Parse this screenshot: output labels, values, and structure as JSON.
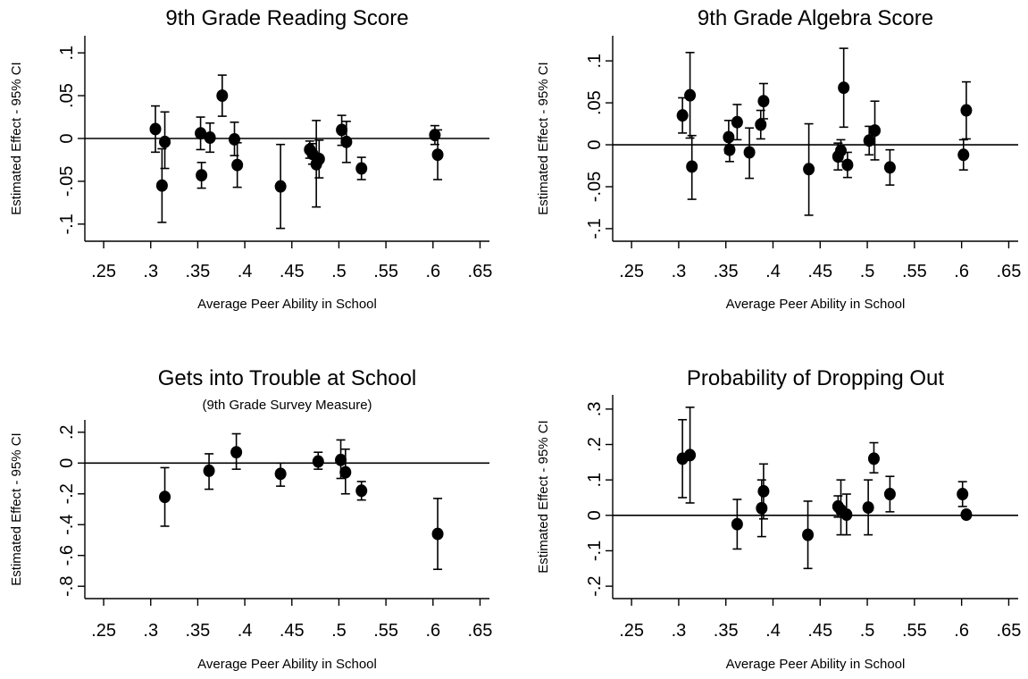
{
  "figure": {
    "xlabel": "Average Peer Ability in School",
    "ylabel": "Estimated Effect - 95% CI"
  },
  "chart_data": [
    {
      "type": "scatter",
      "title": "9th Grade Reading Score",
      "subtitle": "",
      "xlabel": "Average Peer Ability in School",
      "ylabel": "Estimated Effect - 95% CI",
      "xlim": [
        0.23,
        0.66
      ],
      "ylim": [
        -0.12,
        0.12
      ],
      "xticks": [
        ".25",
        ".3",
        ".35",
        ".4",
        ".45",
        ".5",
        ".55",
        ".6",
        ".65"
      ],
      "xtick_values": [
        0.25,
        0.3,
        0.35,
        0.4,
        0.45,
        0.5,
        0.55,
        0.6,
        0.65
      ],
      "yticks": [
        "-.1",
        "-.05",
        "0",
        ".05",
        ".1"
      ],
      "ytick_values": [
        -0.1,
        -0.05,
        0,
        0.05,
        0.1
      ],
      "reference_line": 0,
      "points": [
        {
          "x": 0.305,
          "y": 0.011,
          "lo": -0.016,
          "hi": 0.038
        },
        {
          "x": 0.312,
          "y": -0.055,
          "lo": -0.098,
          "hi": -0.012
        },
        {
          "x": 0.315,
          "y": -0.004,
          "lo": -0.035,
          "hi": 0.031
        },
        {
          "x": 0.353,
          "y": 0.006,
          "lo": -0.013,
          "hi": 0.025
        },
        {
          "x": 0.354,
          "y": -0.043,
          "lo": -0.058,
          "hi": -0.028
        },
        {
          "x": 0.363,
          "y": 0.001,
          "lo": -0.016,
          "hi": 0.018
        },
        {
          "x": 0.376,
          "y": 0.05,
          "lo": 0.026,
          "hi": 0.074
        },
        {
          "x": 0.389,
          "y": -0.001,
          "lo": -0.02,
          "hi": 0.019
        },
        {
          "x": 0.392,
          "y": -0.031,
          "lo": -0.057,
          "hi": -0.005
        },
        {
          "x": 0.438,
          "y": -0.056,
          "lo": -0.105,
          "hi": -0.007
        },
        {
          "x": 0.469,
          "y": -0.013,
          "lo": -0.023,
          "hi": -0.003
        },
        {
          "x": 0.472,
          "y": -0.018,
          "lo": -0.03,
          "hi": -0.006
        },
        {
          "x": 0.476,
          "y": -0.03,
          "lo": -0.08,
          "hi": 0.021
        },
        {
          "x": 0.479,
          "y": -0.024,
          "lo": -0.046,
          "hi": -0.002
        },
        {
          "x": 0.503,
          "y": 0.01,
          "lo": -0.008,
          "hi": 0.027
        },
        {
          "x": 0.508,
          "y": -0.004,
          "lo": -0.028,
          "hi": 0.02
        },
        {
          "x": 0.524,
          "y": -0.035,
          "lo": -0.048,
          "hi": -0.022
        },
        {
          "x": 0.602,
          "y": 0.004,
          "lo": -0.007,
          "hi": 0.015
        },
        {
          "x": 0.605,
          "y": -0.019,
          "lo": -0.048,
          "hi": 0.01
        }
      ]
    },
    {
      "type": "scatter",
      "title": "9th Grade Algebra Score",
      "subtitle": "",
      "xlabel": "Average Peer Ability in School",
      "ylabel": "Estimated Effect - 95% CI",
      "xlim": [
        0.23,
        0.66
      ],
      "ylim": [
        -0.115,
        0.13
      ],
      "xticks": [
        ".25",
        ".3",
        ".35",
        ".4",
        ".45",
        ".5",
        ".55",
        ".6",
        ".65"
      ],
      "xtick_values": [
        0.25,
        0.3,
        0.35,
        0.4,
        0.45,
        0.5,
        0.55,
        0.6,
        0.65
      ],
      "yticks": [
        "-.1",
        "-.05",
        "0",
        ".05",
        ".1"
      ],
      "ytick_values": [
        -0.1,
        -0.05,
        0,
        0.05,
        0.1
      ],
      "reference_line": 0,
      "points": [
        {
          "x": 0.304,
          "y": 0.035,
          "lo": 0.014,
          "hi": 0.056
        },
        {
          "x": 0.312,
          "y": 0.059,
          "lo": 0.008,
          "hi": 0.11
        },
        {
          "x": 0.314,
          "y": -0.026,
          "lo": -0.065,
          "hi": 0.011
        },
        {
          "x": 0.353,
          "y": 0.009,
          "lo": -0.01,
          "hi": 0.029
        },
        {
          "x": 0.354,
          "y": -0.006,
          "lo": -0.02,
          "hi": 0.008
        },
        {
          "x": 0.362,
          "y": 0.027,
          "lo": 0.006,
          "hi": 0.048
        },
        {
          "x": 0.375,
          "y": -0.009,
          "lo": -0.04,
          "hi": 0.02
        },
        {
          "x": 0.387,
          "y": 0.024,
          "lo": 0.007,
          "hi": 0.041
        },
        {
          "x": 0.39,
          "y": 0.052,
          "lo": 0.031,
          "hi": 0.073
        },
        {
          "x": 0.438,
          "y": -0.029,
          "lo": -0.084,
          "hi": 0.025
        },
        {
          "x": 0.469,
          "y": -0.014,
          "lo": -0.03,
          "hi": 0.002
        },
        {
          "x": 0.472,
          "y": -0.007,
          "lo": -0.02,
          "hi": 0.006
        },
        {
          "x": 0.475,
          "y": 0.068,
          "lo": 0.021,
          "hi": 0.115
        },
        {
          "x": 0.479,
          "y": -0.024,
          "lo": -0.039,
          "hi": -0.009
        },
        {
          "x": 0.502,
          "y": 0.005,
          "lo": -0.012,
          "hi": 0.022
        },
        {
          "x": 0.508,
          "y": 0.017,
          "lo": -0.018,
          "hi": 0.052
        },
        {
          "x": 0.524,
          "y": -0.027,
          "lo": -0.048,
          "hi": -0.006
        },
        {
          "x": 0.602,
          "y": -0.012,
          "lo": -0.03,
          "hi": 0.006
        },
        {
          "x": 0.605,
          "y": 0.041,
          "lo": 0.007,
          "hi": 0.075
        }
      ]
    },
    {
      "type": "scatter",
      "title": "Gets into Trouble at School",
      "subtitle": "(9th Grade Survey Measure)",
      "xlabel": "Average Peer Ability in School",
      "ylabel": "Estimated Effect - 95% CI",
      "xlim": [
        0.23,
        0.66
      ],
      "ylim": [
        -0.88,
        0.28
      ],
      "xticks": [
        ".25",
        ".3",
        ".35",
        ".4",
        ".45",
        ".5",
        ".55",
        ".6",
        ".65"
      ],
      "xtick_values": [
        0.25,
        0.3,
        0.35,
        0.4,
        0.45,
        0.5,
        0.55,
        0.6,
        0.65
      ],
      "yticks": [
        "-.8",
        "-.6",
        "-.4",
        "-.2",
        "0",
        ".2"
      ],
      "ytick_values": [
        -0.8,
        -0.6,
        -0.4,
        -0.2,
        0,
        0.2
      ],
      "reference_line": 0,
      "points": [
        {
          "x": 0.315,
          "y": -0.22,
          "lo": -0.41,
          "hi": -0.03
        },
        {
          "x": 0.362,
          "y": -0.05,
          "lo": -0.17,
          "hi": 0.06
        },
        {
          "x": 0.391,
          "y": 0.07,
          "lo": -0.04,
          "hi": 0.19
        },
        {
          "x": 0.438,
          "y": -0.07,
          "lo": -0.15,
          "hi": 0.0
        },
        {
          "x": 0.478,
          "y": 0.01,
          "lo": -0.04,
          "hi": 0.07
        },
        {
          "x": 0.502,
          "y": 0.02,
          "lo": -0.1,
          "hi": 0.15
        },
        {
          "x": 0.507,
          "y": -0.06,
          "lo": -0.2,
          "hi": 0.09
        },
        {
          "x": 0.524,
          "y": -0.18,
          "lo": -0.24,
          "hi": -0.12
        },
        {
          "x": 0.605,
          "y": -0.46,
          "lo": -0.69,
          "hi": -0.23
        }
      ]
    },
    {
      "type": "scatter",
      "title": "Probability of Dropping Out",
      "subtitle": "",
      "xlabel": "Average Peer Ability in School",
      "ylabel": "Estimated Effect - 95% CI",
      "xlim": [
        0.23,
        0.66
      ],
      "ylim": [
        -0.235,
        0.34
      ],
      "xticks": [
        ".25",
        ".3",
        ".35",
        ".4",
        ".45",
        ".5",
        ".55",
        ".6",
        ".65"
      ],
      "xtick_values": [
        0.25,
        0.3,
        0.35,
        0.4,
        0.45,
        0.5,
        0.55,
        0.6,
        0.65
      ],
      "yticks": [
        "-.2",
        "-.1",
        "0",
        ".1",
        ".2",
        ".3"
      ],
      "ytick_values": [
        -0.2,
        -0.1,
        0,
        0.1,
        0.2,
        0.3
      ],
      "reference_line": 0,
      "points": [
        {
          "x": 0.304,
          "y": 0.16,
          "lo": 0.05,
          "hi": 0.27
        },
        {
          "x": 0.312,
          "y": 0.17,
          "lo": 0.035,
          "hi": 0.305
        },
        {
          "x": 0.362,
          "y": -0.025,
          "lo": -0.095,
          "hi": 0.045
        },
        {
          "x": 0.388,
          "y": 0.02,
          "lo": -0.06,
          "hi": 0.1
        },
        {
          "x": 0.39,
          "y": 0.068,
          "lo": -0.01,
          "hi": 0.145
        },
        {
          "x": 0.437,
          "y": -0.055,
          "lo": -0.15,
          "hi": 0.04
        },
        {
          "x": 0.469,
          "y": 0.025,
          "lo": -0.005,
          "hi": 0.055
        },
        {
          "x": 0.472,
          "y": 0.015,
          "lo": -0.055,
          "hi": 0.1
        },
        {
          "x": 0.478,
          "y": 0.002,
          "lo": -0.055,
          "hi": 0.06
        },
        {
          "x": 0.501,
          "y": 0.022,
          "lo": -0.055,
          "hi": 0.1
        },
        {
          "x": 0.507,
          "y": 0.16,
          "lo": 0.12,
          "hi": 0.205
        },
        {
          "x": 0.524,
          "y": 0.06,
          "lo": 0.01,
          "hi": 0.11
        },
        {
          "x": 0.601,
          "y": 0.06,
          "lo": 0.025,
          "hi": 0.095
        },
        {
          "x": 0.605,
          "y": 0.002,
          "lo": -0.008,
          "hi": 0.012
        }
      ]
    }
  ]
}
